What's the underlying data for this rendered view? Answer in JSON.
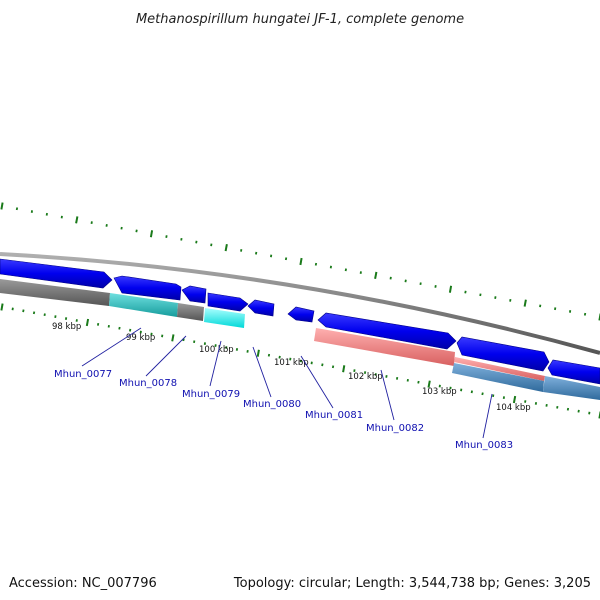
{
  "map": {
    "title": "Methanospirillum hungatei JF-1, complete genome",
    "accession": "Accession: NC_007796",
    "topology": "Topology: circular; Length: 3,544,738 bp; Genes: 3,205"
  },
  "scale_labels": [
    "98 kbp",
    "99 kbp",
    "100 kbp",
    "101 kbp",
    "102 kbp",
    "103 kbp",
    "104 kbp"
  ],
  "genes": [
    {
      "name": "Mhun_0077"
    },
    {
      "name": "Mhun_0078"
    },
    {
      "name": "Mhun_0079"
    },
    {
      "name": "Mhun_0080"
    },
    {
      "name": "Mhun_0081"
    },
    {
      "name": "Mhun_0082"
    },
    {
      "name": "Mhun_0083"
    }
  ],
  "colors": {
    "cds": "#0000ee",
    "backbone": "#8a8a8a",
    "tick": "#1a7a1a",
    "cog_gray": "#707070",
    "cog_teal": "#2ab8b8",
    "cog_cyan": "#00f0f0",
    "cog_salmon": "#f08080",
    "cog_steel": "#4682b4"
  }
}
